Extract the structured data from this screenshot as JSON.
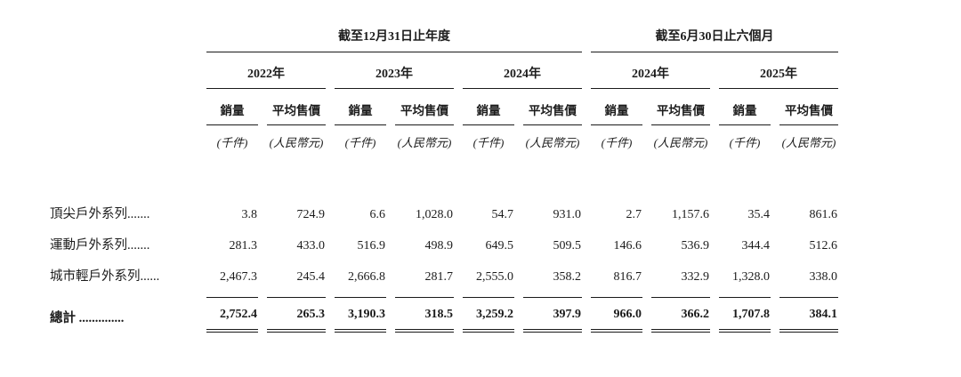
{
  "page": {
    "background": "#ffffff",
    "text_color": "#1c1c1c"
  },
  "table": {
    "period_headers": {
      "annual": "截至12月31日止年度",
      "interim": "截至6月30日止六個月"
    },
    "year_headers": [
      "2022年",
      "2023年",
      "2024年",
      "2024年",
      "2025年"
    ],
    "metric_headers": {
      "volume": "銷量",
      "price": "平均售價"
    },
    "unit_headers": {
      "volume": "(千件)",
      "price": "(人民幣元)"
    },
    "rows": [
      {
        "label": "頂尖戶外系列.......",
        "values": [
          "3.8",
          "724.9",
          "6.6",
          "1,028.0",
          "54.7",
          "931.0",
          "2.7",
          "1,157.6",
          "35.4",
          "861.6"
        ]
      },
      {
        "label": "運動戶外系列.......",
        "values": [
          "281.3",
          "433.0",
          "516.9",
          "498.9",
          "649.5",
          "509.5",
          "146.6",
          "536.9",
          "344.4",
          "512.6"
        ]
      },
      {
        "label": "城市輕戶外系列......",
        "values": [
          "2,467.3",
          "245.4",
          "2,666.8",
          "281.7",
          "2,555.0",
          "358.2",
          "816.7",
          "332.9",
          "1,328.0",
          "338.0"
        ]
      }
    ],
    "total": {
      "label": "總計 ..............",
      "values": [
        "2,752.4",
        "265.3",
        "3,190.3",
        "318.5",
        "3,259.2",
        "397.9",
        "966.0",
        "366.2",
        "1,707.8",
        "384.1"
      ]
    }
  }
}
